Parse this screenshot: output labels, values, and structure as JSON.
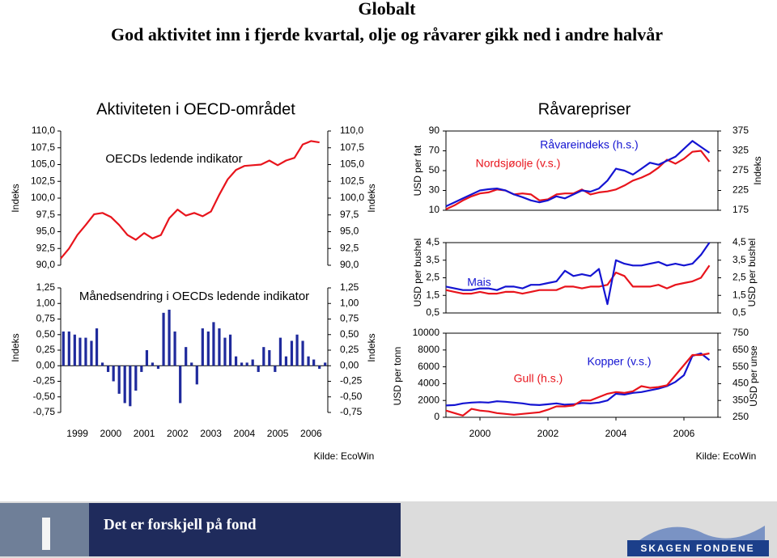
{
  "title": "Globalt",
  "subtitle": "God aktivitet inn i fjerde kvartal, olje og råvarer gikk ned i andre halvår",
  "panels": [
    {
      "title": "Aktiviteten i OECD-området",
      "source": "Kilde: EcoWin"
    },
    {
      "title": "Råvarepriser",
      "source": "Kilde: EcoWin"
    }
  ],
  "footer": {
    "tagline": "Det er forskjell på fond",
    "brand": "SKAGEN FONDENE"
  },
  "chart_data": [
    {
      "type": "line",
      "title": "OECDs ledende indikator",
      "ylabel": "Indeks",
      "y2label": "Indeks",
      "x": [
        1999,
        1999.25,
        1999.5,
        1999.75,
        2000,
        2000.25,
        2000.5,
        2000.75,
        2001,
        2001.25,
        2001.5,
        2001.75,
        2002,
        2002.25,
        2002.5,
        2002.75,
        2003,
        2003.25,
        2003.5,
        2003.75,
        2004,
        2004.25,
        2004.5,
        2004.75,
        2005,
        2005.25,
        2005.5,
        2005.75,
        2006,
        2006.25,
        2006.5,
        2006.75
      ],
      "xlim": [
        1999,
        2007
      ],
      "ylim": [
        90,
        110
      ],
      "yticks": [
        {
          "value": 90,
          "label": "90,0"
        },
        {
          "value": 92.5,
          "label": "92,5"
        },
        {
          "value": 95,
          "label": "95,0"
        },
        {
          "value": 97.5,
          "label": "97,5"
        },
        {
          "value": 100,
          "label": "100,0"
        },
        {
          "value": 102.5,
          "label": "102,5"
        },
        {
          "value": 105,
          "label": "105,0"
        },
        {
          "value": 107.5,
          "label": "107,5"
        },
        {
          "value": 110,
          "label": "110,0"
        }
      ],
      "series": [
        {
          "color": "#e8141c",
          "values": [
            91.0,
            92.5,
            94.5,
            96.0,
            97.6,
            97.8,
            97.2,
            96.0,
            94.5,
            93.8,
            94.8,
            94.0,
            94.5,
            97.0,
            98.3,
            97.4,
            97.8,
            97.3,
            98.0,
            100.5,
            102.8,
            104.2,
            104.8,
            104.9,
            105.0,
            105.6,
            104.9,
            105.6,
            106.0,
            108.0,
            108.5,
            108.3
          ]
        }
      ]
    },
    {
      "type": "bar",
      "title": "Månedsendring i OECDs ledende indikator",
      "ylabel": "Indeks",
      "y2label": "Indeks",
      "color": "#1f2a9c",
      "x": [
        1999.08,
        1999.25,
        1999.42,
        1999.58,
        1999.75,
        1999.92,
        2000.08,
        2000.25,
        2000.42,
        2000.58,
        2000.75,
        2000.92,
        2001.08,
        2001.25,
        2001.42,
        2001.58,
        2001.75,
        2001.92,
        2002.08,
        2002.25,
        2002.42,
        2002.58,
        2002.75,
        2002.92,
        2003.08,
        2003.25,
        2003.42,
        2003.58,
        2003.75,
        2003.92,
        2004.08,
        2004.25,
        2004.42,
        2004.58,
        2004.75,
        2004.92,
        2005.08,
        2005.25,
        2005.42,
        2005.58,
        2005.75,
        2005.92,
        2006.08,
        2006.25,
        2006.42,
        2006.58,
        2006.75,
        2006.92
      ],
      "values": [
        0.55,
        0.55,
        0.5,
        0.45,
        0.45,
        0.4,
        0.6,
        0.05,
        -0.1,
        -0.25,
        -0.45,
        -0.6,
        -0.65,
        -0.4,
        -0.1,
        0.25,
        0.05,
        -0.05,
        0.85,
        0.9,
        0.55,
        -0.6,
        0.3,
        0.05,
        -0.3,
        0.6,
        0.55,
        0.7,
        0.6,
        0.45,
        0.5,
        0.15,
        0.05,
        0.05,
        0.1,
        -0.1,
        0.3,
        0.25,
        -0.1,
        0.45,
        0.15,
        0.4,
        0.5,
        0.4,
        0.15,
        0.1,
        -0.05,
        0.05
      ],
      "xlim": [
        1999,
        2007
      ],
      "ylim": [
        -0.75,
        1.25
      ],
      "yticks": [
        {
          "value": -0.75,
          "label": "-0,75"
        },
        {
          "value": -0.5,
          "label": "-0,50"
        },
        {
          "value": -0.25,
          "label": "-0,25"
        },
        {
          "value": 0,
          "label": "0,00"
        },
        {
          "value": 0.25,
          "label": "0,25"
        },
        {
          "value": 0.5,
          "label": "0,50"
        },
        {
          "value": 0.75,
          "label": "0,75"
        },
        {
          "value": 1,
          "label": "1,00"
        },
        {
          "value": 1.25,
          "label": "1,25"
        }
      ],
      "xticks": [
        {
          "value": 1999.5,
          "label": "1999"
        },
        {
          "value": 2000.5,
          "label": "2000"
        },
        {
          "value": 2001.5,
          "label": "2001"
        },
        {
          "value": 2002.5,
          "label": "2002"
        },
        {
          "value": 2003.5,
          "label": "2003"
        },
        {
          "value": 2004.5,
          "label": "2004"
        },
        {
          "value": 2005.5,
          "label": "2005"
        },
        {
          "value": 2006.5,
          "label": "2006"
        }
      ]
    },
    {
      "type": "line",
      "ylabel": "USD per fat",
      "y2label": "Indeks",
      "x": [
        1999,
        1999.25,
        1999.5,
        1999.75,
        2000,
        2000.25,
        2000.5,
        2000.75,
        2001,
        2001.25,
        2001.5,
        2001.75,
        2002,
        2002.25,
        2002.5,
        2002.75,
        2003,
        2003.25,
        2003.5,
        2003.75,
        2004,
        2004.25,
        2004.5,
        2004.75,
        2005,
        2005.25,
        2005.5,
        2005.75,
        2006,
        2006.25,
        2006.5,
        2006.75
      ],
      "xlim": [
        1999,
        2007
      ],
      "ylim": [
        10,
        90
      ],
      "yticks": [
        10,
        30,
        50,
        70,
        90
      ],
      "y2lim": [
        175,
        375
      ],
      "y2ticks": [
        175,
        225,
        275,
        325,
        375
      ],
      "series": [
        {
          "name": "Nordsjøolje (v.s.)",
          "color": "#e8141c",
          "values": [
            11,
            15,
            20,
            24,
            27,
            28,
            31,
            30,
            26,
            27,
            26,
            20,
            21,
            26,
            27,
            27,
            31,
            26,
            28,
            29,
            31,
            35,
            40,
            43,
            47,
            53,
            61,
            57,
            62,
            69,
            70,
            59
          ]
        },
        {
          "name": "Råvareindeks (h.s.)",
          "color": "#1414d2",
          "axis": "y2",
          "values": [
            185,
            195,
            205,
            215,
            225,
            228,
            230,
            225,
            215,
            208,
            200,
            195,
            200,
            210,
            205,
            215,
            225,
            222,
            230,
            250,
            280,
            275,
            265,
            280,
            295,
            290,
            300,
            310,
            330,
            350,
            335,
            320
          ]
        }
      ]
    },
    {
      "type": "line",
      "ylabel": "USD per bushel",
      "y2label": "USD per bushel",
      "x": [
        1999,
        1999.25,
        1999.5,
        1999.75,
        2000,
        2000.25,
        2000.5,
        2000.75,
        2001,
        2001.25,
        2001.5,
        2001.75,
        2002,
        2002.25,
        2002.5,
        2002.75,
        2003,
        2003.25,
        2003.5,
        2003.75,
        2004,
        2004.25,
        2004.5,
        2004.75,
        2005,
        2005.25,
        2005.5,
        2005.75,
        2006,
        2006.25,
        2006.5,
        2006.75
      ],
      "xlim": [
        1999,
        2007
      ],
      "ylim": [
        0.5,
        4.5
      ],
      "yticks": [
        {
          "value": 0.5,
          "label": "0,5"
        },
        {
          "value": 1.5,
          "label": "1,5"
        },
        {
          "value": 2.5,
          "label": "2,5"
        },
        {
          "value": 3.5,
          "label": "3,5"
        },
        {
          "value": 4.5,
          "label": "4,5"
        }
      ],
      "y2lim": [
        0.5,
        4.5
      ],
      "y2ticks": [
        {
          "value": 0.5,
          "label": "0,5"
        },
        {
          "value": 1.5,
          "label": "1,5"
        },
        {
          "value": 2.5,
          "label": "2,5"
        },
        {
          "value": 3.5,
          "label": "3,5"
        },
        {
          "value": 4.5,
          "label": "4,5"
        }
      ],
      "series": [
        {
          "color": "#e8141c",
          "values": [
            1.8,
            1.7,
            1.6,
            1.6,
            1.7,
            1.6,
            1.6,
            1.7,
            1.7,
            1.6,
            1.7,
            1.8,
            1.8,
            1.8,
            2.0,
            2.0,
            1.9,
            2.0,
            2.0,
            2.1,
            2.8,
            2.6,
            2.0,
            2.0,
            2.0,
            2.1,
            1.9,
            2.1,
            2.2,
            2.3,
            2.5,
            3.2
          ]
        },
        {
          "name": "Mais",
          "color": "#1414d2",
          "values": [
            2.0,
            1.9,
            1.8,
            1.8,
            1.9,
            1.9,
            1.8,
            2.0,
            2.0,
            1.9,
            2.1,
            2.1,
            2.2,
            2.3,
            2.9,
            2.6,
            2.7,
            2.6,
            3.0,
            1.0,
            3.5,
            3.3,
            3.2,
            3.2,
            3.3,
            3.4,
            3.2,
            3.3,
            3.2,
            3.3,
            3.8,
            4.5
          ]
        }
      ]
    },
    {
      "type": "line",
      "ylabel": "USD per tonn",
      "y2label": "USD per unse",
      "x": [
        1999,
        1999.25,
        1999.5,
        1999.75,
        2000,
        2000.25,
        2000.5,
        2000.75,
        2001,
        2001.25,
        2001.5,
        2001.75,
        2002,
        2002.25,
        2002.5,
        2002.75,
        2003,
        2003.25,
        2003.5,
        2003.75,
        2004,
        2004.25,
        2004.5,
        2004.75,
        2005,
        2005.25,
        2005.5,
        2005.75,
        2006,
        2006.25,
        2006.5,
        2006.75
      ],
      "xlim": [
        1999,
        2007
      ],
      "ylim": [
        0,
        10000
      ],
      "yticks": [
        0,
        2000,
        4000,
        6000,
        8000,
        10000
      ],
      "y2lim": [
        250,
        750
      ],
      "y2ticks": [
        250,
        350,
        450,
        550,
        650,
        750
      ],
      "xticks": [
        2000,
        2002,
        2004,
        2006
      ],
      "series": [
        {
          "name": "Kopper (v.s.)",
          "color": "#1414d2",
          "values": [
            1400,
            1450,
            1650,
            1750,
            1800,
            1750,
            1900,
            1850,
            1750,
            1650,
            1500,
            1450,
            1550,
            1650,
            1500,
            1550,
            1700,
            1650,
            1750,
            2000,
            2800,
            2700,
            2900,
            3000,
            3200,
            3400,
            3700,
            4200,
            5000,
            7300,
            7600,
            6800
          ]
        },
        {
          "name": "Gull (h.s.)",
          "color": "#e8141c",
          "axis": "y2",
          "values": [
            290,
            275,
            260,
            300,
            290,
            285,
            275,
            270,
            265,
            270,
            275,
            280,
            295,
            315,
            315,
            320,
            350,
            350,
            370,
            390,
            400,
            395,
            405,
            435,
            425,
            430,
            440,
            500,
            560,
            620,
            620,
            630
          ]
        }
      ]
    }
  ]
}
